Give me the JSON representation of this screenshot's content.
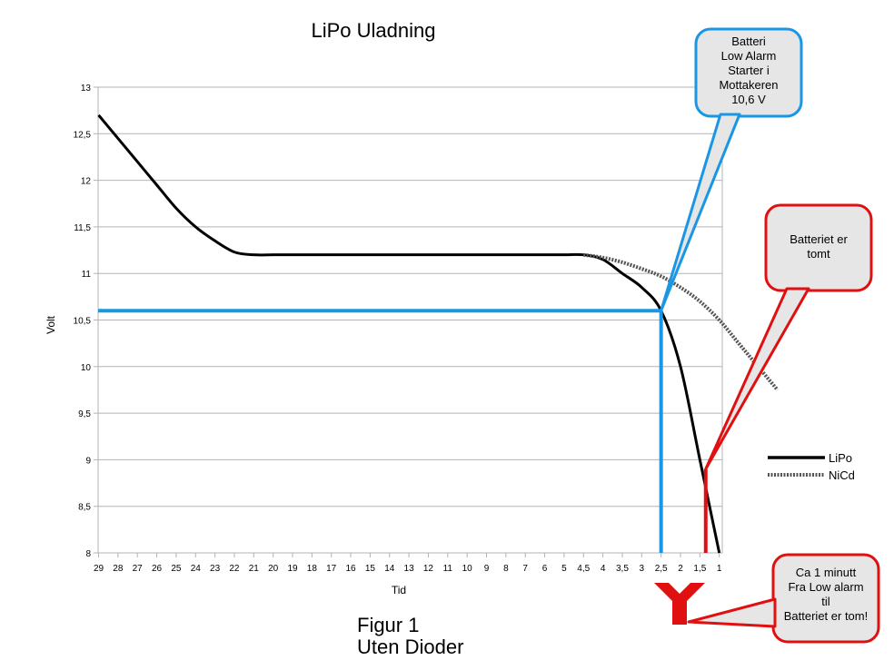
{
  "chart_data": {
    "type": "line",
    "title": "LiPo Uladning",
    "xlabel": "Tid",
    "ylabel": "Volt",
    "x_tick_labels": [
      "29",
      "28",
      "27",
      "26",
      "25",
      "24",
      "23",
      "22",
      "21",
      "20",
      "19",
      "18",
      "17",
      "16",
      "15",
      "14",
      "13",
      "12",
      "11",
      "10",
      "9",
      "8",
      "7",
      "6",
      "5",
      "4,5",
      "4",
      "3,5",
      "3",
      "2,5",
      "2",
      "1,5",
      "1"
    ],
    "y_tick_labels": [
      "8",
      "8,5",
      "9",
      "9,5",
      "10",
      "10,5",
      "11",
      "11,5",
      "12",
      "12,5",
      "13"
    ],
    "ylim": [
      8,
      13
    ],
    "grid": "horizontal",
    "legend_position": "right",
    "series": [
      {
        "name": "LiPo",
        "style": "solid",
        "color": "#000000",
        "points": [
          [
            0,
            12.7
          ],
          [
            1,
            12.45
          ],
          [
            2,
            12.2
          ],
          [
            3,
            11.95
          ],
          [
            4,
            11.7
          ],
          [
            5,
            11.5
          ],
          [
            6,
            11.35
          ],
          [
            7,
            11.23
          ],
          [
            8,
            11.2
          ],
          [
            9,
            11.2
          ],
          [
            10,
            11.2
          ],
          [
            11,
            11.2
          ],
          [
            12,
            11.2
          ],
          [
            13,
            11.2
          ],
          [
            14,
            11.2
          ],
          [
            15,
            11.2
          ],
          [
            16,
            11.2
          ],
          [
            17,
            11.2
          ],
          [
            18,
            11.2
          ],
          [
            19,
            11.2
          ],
          [
            20,
            11.2
          ],
          [
            21,
            11.2
          ],
          [
            22,
            11.2
          ],
          [
            23,
            11.2
          ],
          [
            24,
            11.2
          ],
          [
            25,
            11.2
          ],
          [
            26,
            11.15
          ],
          [
            27,
            11.0
          ],
          [
            28,
            10.85
          ],
          [
            29,
            10.6
          ],
          [
            30,
            10.0
          ],
          [
            31,
            9.0
          ],
          [
            32,
            8.0
          ]
        ]
      },
      {
        "name": "NiCd",
        "style": "dotted",
        "color": "#555555",
        "points": [
          [
            25,
            11.2
          ],
          [
            26,
            11.17
          ],
          [
            27,
            11.12
          ],
          [
            28,
            11.05
          ],
          [
            29,
            10.97
          ],
          [
            30,
            10.85
          ],
          [
            31,
            10.7
          ],
          [
            32,
            10.5
          ],
          [
            33,
            10.25
          ],
          [
            34,
            10.0
          ],
          [
            35,
            9.75
          ]
        ]
      }
    ],
    "annotations": [
      {
        "id": "low_alarm",
        "text": "Batteri\nLow Alarm\nStarter i\nMottakeren\n10,6 V",
        "color": "#1a96e6",
        "voltage": 10.6,
        "x_index": 29
      },
      {
        "id": "empty",
        "text": "Batteriet er\ntomt",
        "color": "#e01010",
        "voltage": 8.9,
        "x_index": 31.3
      },
      {
        "id": "duration",
        "text": "Ca 1 minutt\nFra Low alarm\ntil\nBatteriet er tom!",
        "color": "#e01010"
      }
    ]
  },
  "caption": {
    "line1": "Figur 1",
    "line2": "Uten Dioder"
  },
  "colors": {
    "blue": "#1a96e6",
    "red": "#e01010",
    "callout_fill": "#e6e6e6",
    "grid": "#b3b3b3"
  }
}
